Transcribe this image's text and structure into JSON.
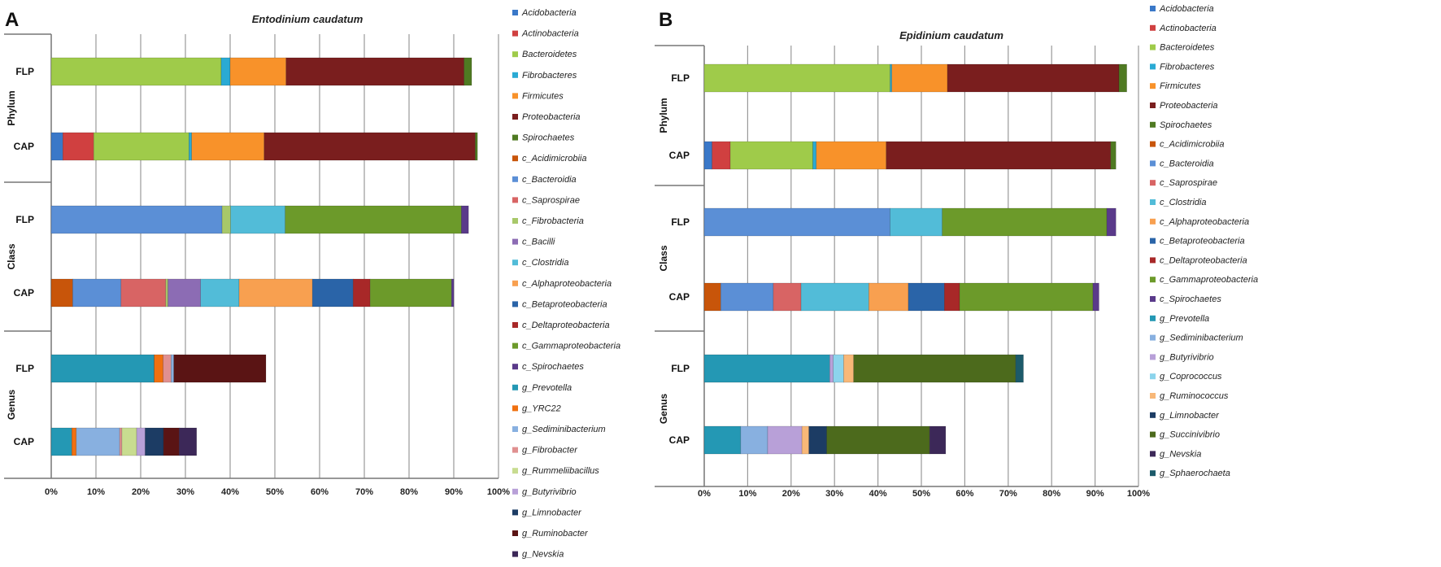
{
  "colors": {
    "Acidobacteria": "#3a78c8",
    "Actinobacteria": "#d04040",
    "Bacteroidetes": "#9fcb4a",
    "Fibrobacteres": "#2aaad4",
    "Firmicutes": "#f8922a",
    "Proteobacteria": "#7a1e1e",
    "Spirochaetes": "#4f7a22",
    "c_Acidimicrobiia": "#c8550a",
    "c_Bacteroidia": "#5b8fd6",
    "c_Saprospirae": "#d86464",
    "c_Fibrobacteria": "#a8c86a",
    "c_Bacilli": "#8c6cb4",
    "c_Clostridia": "#52bcd8",
    "c_Alphaproteobacteria": "#f8a050",
    "c_Betaproteobacteria": "#2a64a8",
    "c_Deltaproteobacteria": "#a82828",
    "c_Gammaproteobacteria": "#6c9a2a",
    "c_Spirochaetes": "#5a3a8a",
    "g_Prevotella": "#2498b4",
    "g_YRC22": "#f07010",
    "g_Sediminibacterium": "#88b0e0",
    "g_Fibrobacter": "#e09090",
    "g_Rummeliibacillus": "#c8dc90",
    "g_Butyrivibrio": "#b8a0d8",
    "g_Limnobacter": "#1c3c64",
    "g_Ruminobacter": "#5a1414",
    "g_Nevskia": "#3c2858",
    "g_Coprococcus": "#8cd4ec",
    "g_Ruminococcus": "#f8b878",
    "g_Succinivibrio": "#4c6a1c",
    "g_Sphaerochaeta": "#1c5a6a"
  },
  "chart_data": [
    {
      "type": "bar",
      "stacked": true,
      "orientation": "horizontal",
      "panel_letter": "A",
      "title": "Entodinium caudatum",
      "xlim": [
        0,
        100
      ],
      "xticks": [
        "0%",
        "10%",
        "20%",
        "30%",
        "40%",
        "50%",
        "60%",
        "70%",
        "80%",
        "90%",
        "100%"
      ],
      "grid": true,
      "legend_position": "right",
      "legend": [
        "Acidobacteria",
        "Actinobacteria",
        "Bacteroidetes",
        "Fibrobacteres",
        "Firmicutes",
        "Proteobacteria",
        "Spirochaetes",
        "c_Acidimicrobiia",
        "c_Bacteroidia",
        "c_Saprospirae",
        "c_Fibrobacteria",
        "c_Bacilli",
        "c_Clostridia",
        "c_Alphaproteobacteria",
        "c_Betaproteobacteria",
        "c_Deltaproteobacteria",
        "c_Gammaproteobacteria",
        "c_Spirochaetes",
        "g_Prevotella",
        "g_YRC22",
        "g_Sediminibacterium",
        "g_Fibrobacter",
        "g_Rummeliibacillus",
        "g_Butyrivibrio",
        "g_Limnobacter",
        "g_Ruminobacter",
        "g_Nevskia"
      ],
      "groups": [
        {
          "name": "Phylum",
          "rows": [
            {
              "label": "FLP",
              "segments": [
                [
                  "Bacteroidetes",
                  38
                ],
                [
                  "Fibrobacteres",
                  2
                ],
                [
                  "Firmicutes",
                  12.5
                ],
                [
                  "Proteobacteria",
                  39.8
                ],
                [
                  "Spirochaetes",
                  1.7
                ]
              ]
            },
            {
              "label": "CAP",
              "segments": [
                [
                  "Acidobacteria",
                  2.6
                ],
                [
                  "Actinobacteria",
                  6.9
                ],
                [
                  "Bacteroidetes",
                  21.3
                ],
                [
                  "Fibrobacteres",
                  0.6
                ],
                [
                  "Firmicutes",
                  16.2
                ],
                [
                  "Proteobacteria",
                  47.2
                ],
                [
                  "Spirochaetes",
                  0.5
                ]
              ]
            }
          ]
        },
        {
          "name": "Class",
          "rows": [
            {
              "label": "FLP",
              "segments": [
                [
                  "c_Bacteroidia",
                  38.2
                ],
                [
                  "c_Fibrobacteria",
                  1.9
                ],
                [
                  "c_Clostridia",
                  12.2
                ],
                [
                  "c_Gammaproteobacteria",
                  39.4
                ],
                [
                  "c_Spirochaetes",
                  1.6
                ]
              ]
            },
            {
              "label": "CAP",
              "segments": [
                [
                  "c_Acidimicrobiia",
                  4.8
                ],
                [
                  "c_Bacteroidia",
                  10.8
                ],
                [
                  "c_Saprospirae",
                  10
                ],
                [
                  "c_Fibrobacteria",
                  0.5
                ],
                [
                  "c_Bacilli",
                  7.3
                ],
                [
                  "c_Clostridia",
                  8.6
                ],
                [
                  "c_Alphaproteobacteria",
                  16.4
                ],
                [
                  "c_Betaproteobacteria",
                  9.1
                ],
                [
                  "c_Deltaproteobacteria",
                  3.8
                ],
                [
                  "c_Gammaproteobacteria",
                  18.2
                ],
                [
                  "c_Spirochaetes",
                  0.5
                ]
              ]
            }
          ]
        },
        {
          "name": "Genus",
          "rows": [
            {
              "label": "FLP",
              "segments": [
                [
                  "g_Prevotella",
                  23
                ],
                [
                  "g_YRC22",
                  2
                ],
                [
                  "g_Fibrobacter",
                  1.8
                ],
                [
                  "g_Sediminibacterium",
                  0.6
                ],
                [
                  "g_Ruminobacter",
                  20.6
                ]
              ]
            },
            {
              "label": "CAP",
              "segments": [
                [
                  "g_Prevotella",
                  4.6
                ],
                [
                  "g_YRC22",
                  1
                ],
                [
                  "g_Sediminibacterium",
                  9.7
                ],
                [
                  "g_Fibrobacter",
                  0.5
                ],
                [
                  "g_Rummeliibacillus",
                  3.3
                ],
                [
                  "g_Butyrivibrio",
                  1.9
                ],
                [
                  "g_Limnobacter",
                  4.1
                ],
                [
                  "g_Ruminobacter",
                  3.5
                ],
                [
                  "g_Nevskia",
                  3.9
                ]
              ]
            }
          ]
        }
      ]
    },
    {
      "type": "bar",
      "stacked": true,
      "orientation": "horizontal",
      "panel_letter": "B",
      "title": "Epidinium caudatum",
      "xlim": [
        0,
        100
      ],
      "xticks": [
        "0%",
        "10%",
        "20%",
        "30%",
        "40%",
        "50%",
        "60%",
        "70%",
        "80%",
        "90%",
        "100%"
      ],
      "grid": true,
      "legend_position": "right",
      "legend": [
        "Acidobacteria",
        "Actinobacteria",
        "Bacteroidetes",
        "Fibrobacteres",
        "Firmicutes",
        "Proteobacteria",
        "Spirochaetes",
        "c_Acidimicrobiia",
        "c_Bacteroidia",
        "c_Saprospirae",
        "c_Clostridia",
        "c_Alphaproteobacteria",
        "c_Betaproteobacteria",
        "c_Deltaproteobacteria",
        "c_Gammaproteobacteria",
        "c_Spirochaetes",
        "g_Prevotella",
        "g_Sediminibacterium",
        "g_Butyrivibrio",
        "g_Coprococcus",
        "g_Ruminococcus",
        "g_Limnobacter",
        "g_Succinivibrio",
        "g_Nevskia",
        "g_Sphaerochaeta"
      ],
      "groups": [
        {
          "name": "Phylum",
          "rows": [
            {
              "label": "FLP",
              "segments": [
                [
                  "Bacteroidetes",
                  42.8
                ],
                [
                  "Fibrobacteres",
                  0.4
                ],
                [
                  "Firmicutes",
                  12.8
                ],
                [
                  "Proteobacteria",
                  39.5
                ],
                [
                  "Spirochaetes",
                  1.8
                ]
              ]
            },
            {
              "label": "CAP",
              "segments": [
                [
                  "Acidobacteria",
                  1.8
                ],
                [
                  "Actinobacteria",
                  4.2
                ],
                [
                  "Bacteroidetes",
                  19
                ],
                [
                  "Fibrobacteres",
                  0.8
                ],
                [
                  "Firmicutes",
                  16.1
                ],
                [
                  "Proteobacteria",
                  51.7
                ],
                [
                  "Spirochaetes",
                  1.2
                ]
              ]
            }
          ]
        },
        {
          "name": "Class",
          "rows": [
            {
              "label": "FLP",
              "segments": [
                [
                  "c_Bacteroidia",
                  42.8
                ],
                [
                  "c_Clostridia",
                  12
                ],
                [
                  "c_Gammaproteobacteria",
                  37.9
                ],
                [
                  "c_Spirochaetes",
                  2.1
                ]
              ]
            },
            {
              "label": "CAP",
              "segments": [
                [
                  "c_Acidimicrobiia",
                  3.8
                ],
                [
                  "c_Bacteroidia",
                  12.1
                ],
                [
                  "c_Saprospirae",
                  6.4
                ],
                [
                  "c_Clostridia",
                  15.6
                ],
                [
                  "c_Alphaproteobacteria",
                  9.1
                ],
                [
                  "c_Betaproteobacteria",
                  8.3
                ],
                [
                  "c_Deltaproteobacteria",
                  3.5
                ],
                [
                  "c_Gammaproteobacteria",
                  30.7
                ],
                [
                  "c_Spirochaetes",
                  1.4
                ]
              ]
            }
          ]
        },
        {
          "name": "Genus",
          "rows": [
            {
              "label": "FLP",
              "segments": [
                [
                  "g_Prevotella",
                  28.9
                ],
                [
                  "g_Butyrivibrio",
                  0.8
                ],
                [
                  "g_Coprococcus",
                  2.4
                ],
                [
                  "g_Ruminococcus",
                  2.3
                ],
                [
                  "g_Succinivibrio",
                  37.3
                ],
                [
                  "g_Sphaerochaeta",
                  1.8
                ]
              ]
            },
            {
              "label": "CAP",
              "segments": [
                [
                  "g_Prevotella",
                  8.4
                ],
                [
                  "g_Sediminibacterium",
                  6.2
                ],
                [
                  "g_Butyrivibrio",
                  7.9
                ],
                [
                  "g_Ruminococcus",
                  1.6
                ],
                [
                  "g_Limnobacter",
                  4.1
                ],
                [
                  "g_Succinivibrio",
                  23.7
                ],
                [
                  "g_Nevskia",
                  3.7
                ]
              ]
            }
          ]
        }
      ]
    }
  ]
}
